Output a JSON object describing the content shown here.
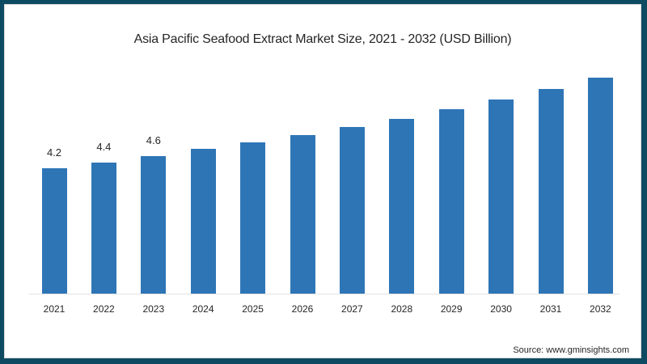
{
  "title": "Asia Pacific Seafood Extract Market Size, 2021 - 2032 (USD Billion)",
  "source": "Source: www.gminsights.com",
  "colors": {
    "bar": "#2e75b6",
    "border": "#0f4a63",
    "background": "#ffffff"
  },
  "chart_data": {
    "type": "bar",
    "title": "Asia Pacific Seafood Extract Market Size, 2021 - 2032 (USD Billion)",
    "xlabel": "",
    "ylabel": "USD Billion",
    "categories": [
      "2021",
      "2022",
      "2023",
      "2024",
      "2025",
      "2026",
      "2027",
      "2028",
      "2029",
      "2030",
      "2031",
      "2032"
    ],
    "values": [
      4.2,
      4.4,
      4.6,
      4.85,
      5.07,
      5.31,
      5.58,
      5.85,
      6.18,
      6.5,
      6.86,
      7.23
    ],
    "data_labels": [
      "4.2",
      "4.4",
      "4.6",
      "",
      "",
      "",
      "",
      "",
      "",
      "",
      "",
      ""
    ],
    "ylim": [
      0,
      7.5
    ],
    "grid": false,
    "legend": null,
    "annotations": [
      "Source: www.gminsights.com"
    ]
  }
}
